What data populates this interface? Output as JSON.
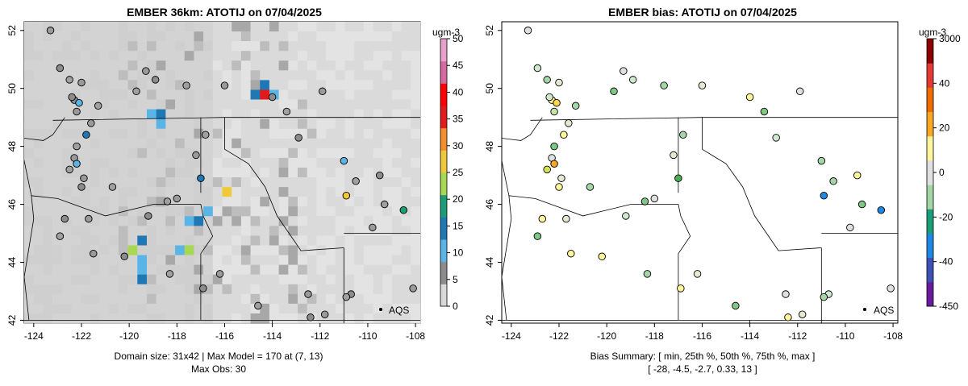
{
  "panels": [
    {
      "title": "EMBER 36km: ATOTIJ on 07/04/2025",
      "footer_line1": "Domain size: 31x42 | Max Model = 170 at (7, 13)",
      "footer_line2": "Max Obs: 30",
      "legend_unit": "ugm-3",
      "legend_ticks": [
        "0",
        "5",
        "10",
        "15",
        "20",
        "25",
        "30",
        "35",
        "40",
        "45",
        "50"
      ],
      "network_label": "AQS"
    },
    {
      "title": "EMBER bias: ATOTIJ on 07/04/2025",
      "footer_line1": "Bias Summary: [ min, 25th %, 50th %, 75th %, max ]",
      "footer_line2": "[ -28,   -4.5,   -2.7,   0.33,   13 ]",
      "legend_unit": "ugm-3",
      "legend_ticks": [
        "3000",
        "40",
        "20",
        "0",
        "-20",
        "-40",
        "-450"
      ],
      "network_label": "AQS"
    }
  ],
  "map_axes": {
    "x_ticks": [
      "-124",
      "-122",
      "-120",
      "-118",
      "-116",
      "-114",
      "-112",
      "-110",
      "-108"
    ],
    "y_ticks": [
      "42",
      "44",
      "46",
      "48",
      "50",
      "52"
    ],
    "xlim": [
      -124.4,
      -107.8
    ],
    "ylim": [
      41.9,
      52.3
    ]
  },
  "colors": {
    "concentration_scale": [
      "#d9d9d9",
      "#8c8c8c",
      "#5ab4e6",
      "#1f78b4",
      "#1b9e77",
      "#a6d854",
      "#f0c93a",
      "#f28e2b",
      "#e31a1c",
      "#ff0000",
      "#d46aa0",
      "#e8a0c8"
    ],
    "bias_scale": [
      "#6a1b9a",
      "#3f51b5",
      "#1e88e5",
      "#1b9e77",
      "#a5d6a7",
      "#e0e0e0",
      "#fff59d",
      "#f9a825",
      "#ef6c00",
      "#e53935",
      "#8b0000"
    ]
  },
  "sites_obs": [
    [
      -123.3,
      52.0
    ],
    [
      -122.9,
      50.7
    ],
    [
      -122.5,
      50.3
    ],
    [
      -122.0,
      50.2
    ],
    [
      -122.3,
      49.6
    ],
    [
      -122.1,
      49.5
    ],
    [
      -122.2,
      49.2
    ],
    [
      -122.4,
      49.7
    ],
    [
      -121.3,
      49.4
    ],
    [
      -121.6,
      48.8
    ],
    [
      -121.8,
      48.4
    ],
    [
      -122.2,
      48.0
    ],
    [
      -122.3,
      47.6
    ],
    [
      -122.2,
      47.4
    ],
    [
      -122.5,
      47.2
    ],
    [
      -121.9,
      46.9
    ],
    [
      -122.0,
      46.6
    ],
    [
      -119.7,
      49.9
    ],
    [
      -119.3,
      50.6
    ],
    [
      -118.9,
      50.3
    ],
    [
      -117.6,
      50.1
    ],
    [
      -116.0,
      50.1
    ],
    [
      -114.0,
      49.7
    ],
    [
      -113.4,
      49.2
    ],
    [
      -111.9,
      49.9
    ],
    [
      -112.9,
      48.3
    ],
    [
      -116.8,
      48.4
    ],
    [
      -117.2,
      47.7
    ],
    [
      -117.0,
      46.9
    ],
    [
      -118.4,
      46.1
    ],
    [
      -118.0,
      46.2
    ],
    [
      -119.2,
      45.6
    ],
    [
      -120.7,
      46.6
    ],
    [
      -121.7,
      45.5
    ],
    [
      -122.7,
      45.5
    ],
    [
      -122.9,
      44.9
    ],
    [
      -121.5,
      44.3
    ],
    [
      -120.2,
      44.2
    ],
    [
      -118.3,
      43.6
    ],
    [
      -116.2,
      43.6
    ],
    [
      -116.9,
      43.1
    ],
    [
      -114.6,
      42.5
    ],
    [
      -112.5,
      42.9
    ],
    [
      -111.0,
      47.5
    ],
    [
      -110.5,
      46.8
    ],
    [
      -110.9,
      46.3
    ],
    [
      -109.5,
      47.0
    ],
    [
      -108.5,
      45.8
    ],
    [
      -108.1,
      43.1
    ],
    [
      -110.7,
      42.9
    ],
    [
      -110.9,
      42.8
    ],
    [
      -111.8,
      42.2
    ],
    [
      -112.4,
      42.1
    ],
    [
      -109.3,
      46.0
    ],
    [
      -109.8,
      45.2
    ]
  ]
}
